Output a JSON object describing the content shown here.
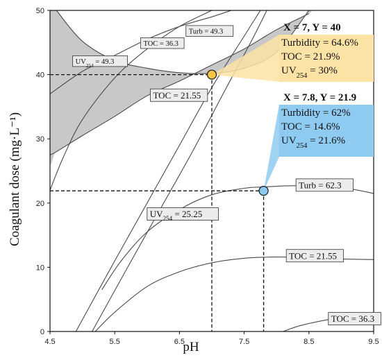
{
  "chart_data": {
    "type": "contour",
    "xlabel": "pH",
    "ylabel": "Coagulant dose (mg·L⁻¹)",
    "xlim": [
      4.5,
      9.5
    ],
    "ylim": [
      0,
      50
    ],
    "x_ticks": [
      "4.5",
      "5.5",
      "6.5",
      "7.5",
      "8.5",
      "9.5"
    ],
    "y_ticks": [
      "0",
      "10",
      "20",
      "30",
      "40",
      "50"
    ],
    "grid": false,
    "shaded_region_color": "#c8c8c8",
    "contours": [
      {
        "name": "Turb = 49.3",
        "label_main": "Turb",
        "label_sub": "",
        "label_value": "= 49.3",
        "label_pos": [
          6.6,
          46.8
        ],
        "points": [
          [
            4.5,
            27.5
          ],
          [
            4.6,
            28
          ],
          [
            5.0,
            30.5
          ],
          [
            5.5,
            33.5
          ],
          [
            6.0,
            36.7
          ],
          [
            6.5,
            39
          ],
          [
            7.0,
            41.5
          ],
          [
            7.5,
            44
          ],
          [
            8.0,
            47
          ],
          [
            8.5,
            49.5
          ]
        ]
      },
      {
        "name": "TOC = 36.3 (top)",
        "label_main": "TOC",
        "label_sub": "",
        "label_value": "= 36.3",
        "label_pos": [
          5.9,
          44.9
        ],
        "points": [
          [
            4.5,
            22
          ],
          [
            4.7,
            27
          ],
          [
            5.0,
            33
          ],
          [
            5.5,
            39.5
          ],
          [
            6.0,
            44
          ],
          [
            6.5,
            47.5
          ],
          [
            7.0,
            50
          ]
        ]
      },
      {
        "name": "UV254 = 49.3",
        "label_main": "UV",
        "label_sub": "254",
        "label_value": "= 49.3",
        "label_pos": [
          4.85,
          42.1
        ],
        "points": [
          [
            4.5,
            37
          ],
          [
            5.0,
            40.5
          ],
          [
            5.5,
            43
          ],
          [
            6.0,
            45.5
          ],
          [
            6.5,
            47.5
          ],
          [
            7.0,
            49
          ],
          [
            7.3,
            50
          ]
        ]
      },
      {
        "name": "TOC = 21.55 (top)",
        "label_main": "TOC",
        "label_sub": "",
        "label_value": "= 21.55",
        "label_pos": [
          6.05,
          36.8
        ],
        "points": [
          [
            4.6,
            50
          ],
          [
            5.0,
            45.2
          ],
          [
            5.5,
            42.2
          ],
          [
            6.0,
            41
          ],
          [
            6.5,
            40.3
          ],
          [
            7.0,
            40.2
          ],
          [
            7.5,
            41
          ],
          [
            8.0,
            43.5
          ],
          [
            8.5,
            50
          ]
        ]
      },
      {
        "name": "steep line A",
        "points": [
          [
            4.9,
            0
          ],
          [
            5.5,
            11
          ],
          [
            6.0,
            20
          ],
          [
            6.5,
            29
          ],
          [
            7.0,
            38
          ],
          [
            7.5,
            46
          ],
          [
            7.75,
            50
          ]
        ]
      },
      {
        "name": "steep line B",
        "points": [
          [
            5.15,
            0
          ],
          [
            5.7,
            10
          ],
          [
            6.2,
            19
          ],
          [
            6.7,
            28
          ],
          [
            7.2,
            37.5
          ],
          [
            7.6,
            45
          ],
          [
            7.85,
            50
          ]
        ]
      },
      {
        "name": "TOC = 36.3 (bottom)",
        "label_main": "TOC",
        "label_sub": "",
        "label_value": "= 36.3",
        "label_pos": [
          8.8,
          2.0
        ],
        "points": [
          [
            8.1,
            0
          ],
          [
            8.4,
            1
          ],
          [
            9.0,
            2.2
          ],
          [
            9.5,
            2.8
          ]
        ]
      },
      {
        "name": "TOC = 21.55 (bottom)",
        "label_main": "TOC",
        "label_sub": "",
        "label_value": "= 21.55",
        "label_pos": [
          8.15,
          11.8
        ],
        "points": [
          [
            5.2,
            0
          ],
          [
            5.5,
            3
          ],
          [
            6.0,
            7
          ],
          [
            6.5,
            9.3
          ],
          [
            7.0,
            10.7
          ],
          [
            7.5,
            11.4
          ],
          [
            8.0,
            11.6
          ],
          [
            8.5,
            11.5
          ],
          [
            9.0,
            11.3
          ],
          [
            9.5,
            11.2
          ]
        ]
      },
      {
        "name": "Turb = 62.3",
        "label_main": "Turb",
        "label_sub": "",
        "label_value": "= 62.3",
        "label_pos": [
          8.3,
          22.8
        ],
        "points": [
          [
            5.3,
            6.5
          ],
          [
            5.6,
            11
          ],
          [
            6.0,
            15.5
          ],
          [
            6.5,
            19
          ],
          [
            7.0,
            21.3
          ],
          [
            7.5,
            22.3
          ],
          [
            7.8,
            22.5
          ],
          [
            8.3,
            22.7
          ],
          [
            9.0,
            22.4
          ],
          [
            9.5,
            21.5
          ]
        ]
      },
      {
        "name": "UV254 = 25.25",
        "label_main": "UV",
        "label_sub": "254",
        "label_value": "= 25.25",
        "label_pos": [
          6.0,
          18.3
        ],
        "points": []
      }
    ],
    "dashed_guides": [
      {
        "x": 7.0,
        "y": 40
      },
      {
        "x": 7.8,
        "y": 21.9
      }
    ],
    "points": [
      {
        "x": 7.0,
        "y": 40,
        "color": "#f7c648",
        "title": "X = 7, Y = 40",
        "lines": [
          {
            "name": "Turbidity",
            "sub": "",
            "value": "= 64.6%"
          },
          {
            "name": "TOC",
            "sub": "",
            "value": "= 21.9%"
          },
          {
            "name": "UV",
            "sub": "254",
            "value": "= 30%"
          }
        ],
        "box_color": "#fbe3a6"
      },
      {
        "x": 7.8,
        "y": 21.9,
        "color": "#8cc9f0",
        "title": "X = 7.8, Y = 21.9",
        "lines": [
          {
            "name": "Turbidity",
            "sub": "",
            "value": "= 62%"
          },
          {
            "name": "TOC",
            "sub": "",
            "value": "= 14.6%"
          },
          {
            "name": "UV",
            "sub": "254",
            "value": "= 21.6%"
          }
        ],
        "box_color": "#8fcaf0"
      }
    ]
  }
}
